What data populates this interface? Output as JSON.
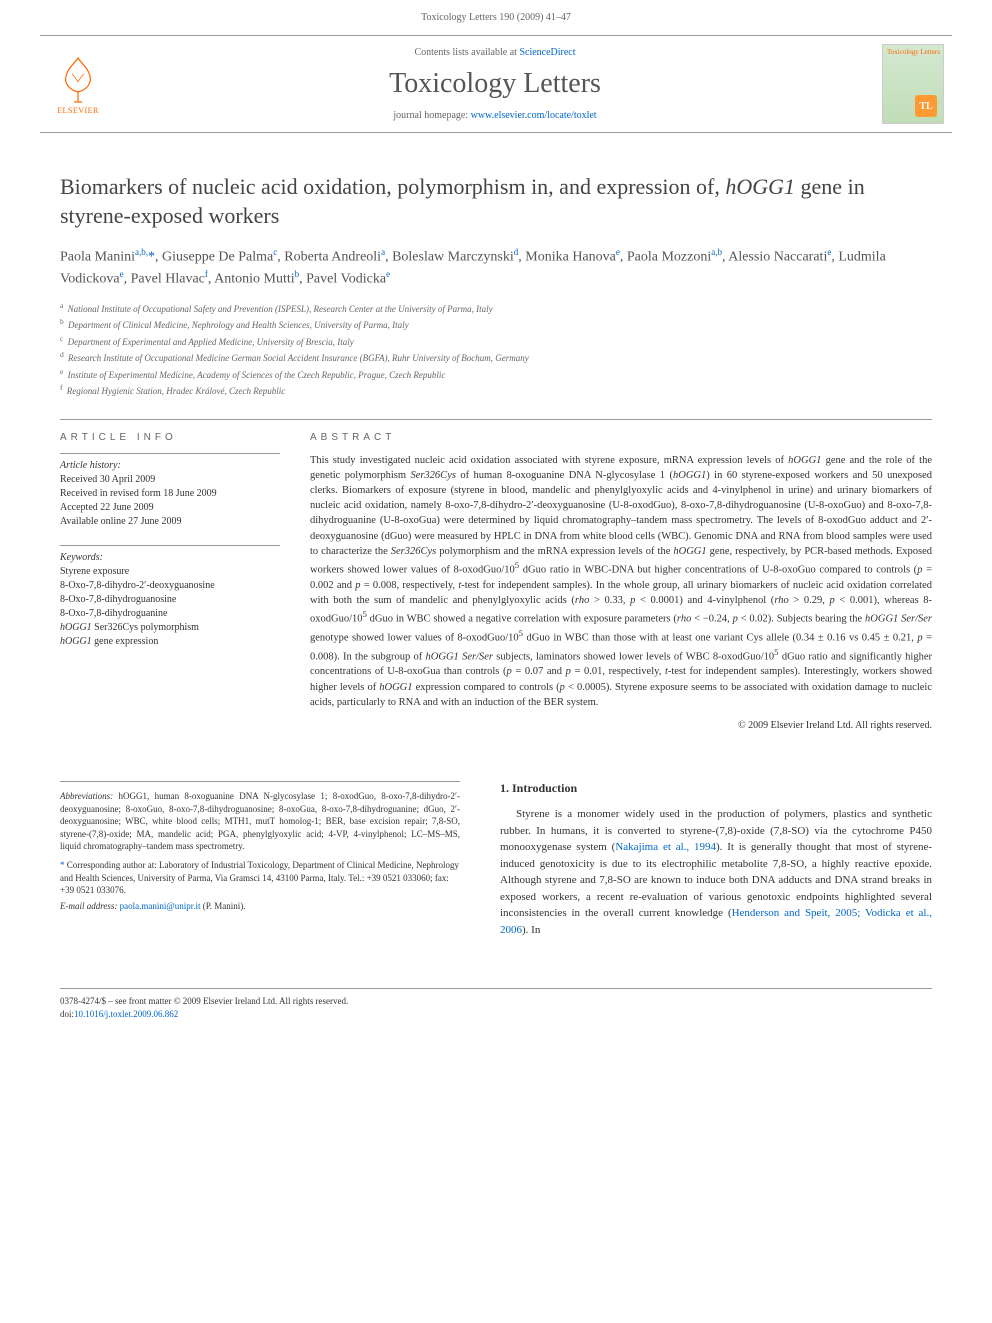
{
  "page_header": "Toxicology Letters 190 (2009) 41–47",
  "masthead": {
    "contents_prefix": "Contents lists available at ",
    "contents_link": "ScienceDirect",
    "journal_title": "Toxicology Letters",
    "homepage_prefix": "journal homepage: ",
    "homepage_url": "www.elsevier.com/locate/toxlet",
    "publisher_label": "ELSEVIER",
    "cover_label": "Toxicology\nLetters",
    "cover_badge": "TL"
  },
  "article": {
    "title_plain": "Biomarkers of nucleic acid oxidation, polymorphism in, and expression of, ",
    "title_em": "hOGG1",
    "title_tail": " gene in styrene-exposed workers",
    "authors_html": "Paola Manini<sup>a,b,</sup><span class='star'>*</span>, Giuseppe De Palma<sup>c</sup>, Roberta Andreoli<sup>a</sup>, Boleslaw Marczynski<sup>d</sup>, Monika Hanova<sup>e</sup>, Paola Mozzoni<sup>a,b</sup>, Alessio Naccarati<sup>e</sup>, Ludmila Vodickova<sup>e</sup>, Pavel Hlavac<sup>f</sup>, Antonio Mutti<sup>b</sup>, Pavel Vodicka<sup>e</sup>"
  },
  "affiliations": [
    "National Institute of Occupational Safety and Prevention (ISPESL), Research Center at the University of Parma, Italy",
    "Department of Clinical Medicine, Nephrology and Health Sciences, University of Parma, Italy",
    "Department of Experimental and Applied Medicine, University of Brescia, Italy",
    "Research Institute of Occupational Medicine German Social Accident Insurance (BGFA), Ruhr University of Bochum, Germany",
    "Institute of Experimental Medicine, Academy of Sciences of the Czech Republic, Prague, Czech Republic",
    "Regional Hygienic Station, Hradec Králové, Czech Republic"
  ],
  "aff_markers": [
    "a",
    "b",
    "c",
    "d",
    "e",
    "f"
  ],
  "info": {
    "heading": "ARTICLE INFO",
    "history_label": "Article history:",
    "history": [
      "Received 30 April 2009",
      "Received in revised form 18 June 2009",
      "Accepted 22 June 2009",
      "Available online 27 June 2009"
    ],
    "keywords_label": "Keywords:",
    "keywords": [
      "Styrene exposure",
      "8-Oxo-7,8-dihydro-2′-deoxyguanosine",
      "8-Oxo-7,8-dihydroguanosine",
      "8-Oxo-7,8-dihydroguanine",
      "hOGG1 Ser326Cys polymorphism",
      "hOGG1 gene expression"
    ]
  },
  "abstract": {
    "heading": "ABSTRACT",
    "text": "This study investigated nucleic acid oxidation associated with styrene exposure, mRNA expression levels of <em>hOGG1</em> gene and the role of the genetic polymorphism <em>Ser326Cys</em> of human 8-oxoguanine DNA N-glycosylase 1 (<em>hOGG1</em>) in 60 styrene-exposed workers and 50 unexposed clerks. Biomarkers of exposure (styrene in blood, mandelic and phenylglyoxylic acids and 4-vinylphenol in urine) and urinary biomarkers of nucleic acid oxidation, namely 8-oxo-7,8-dihydro-2′-deoxyguanosine (U-8-oxodGuo), 8-oxo-7,8-dihydroguanosine (U-8-oxoGuo) and 8-oxo-7,8-dihydroguanine (U-8-oxoGua) were determined by liquid chromatography–tandem mass spectrometry. The levels of 8-oxodGuo adduct and 2′-deoxyguanosine (dGuo) were measured by HPLC in DNA from white blood cells (WBC). Genomic DNA and RNA from blood samples were used to characterize the <em>Ser326Cys</em> polymorphism and the mRNA expression levels of the <em>hOGG1</em> gene, respectively, by PCR-based methods. Exposed workers showed lower values of 8-oxodGuo/10<sup>5</sup> dGuo ratio in WBC-DNA but higher concentrations of U-8-oxoGuo compared to controls (<em>p</em> = 0.002 and <em>p</em> = 0.008, respectively, <em>t</em>-test for independent samples). In the whole group, all urinary biomarkers of nucleic acid oxidation correlated with both the sum of mandelic and phenylglyoxylic acids (<em>rho</em> > 0.33, <em>p</em> < 0.0001) and 4-vinylphenol (<em>rho</em> > 0.29, <em>p</em> < 0.001), whereas 8-oxodGuo/10<sup>5</sup> dGuo in WBC showed a negative correlation with exposure parameters (<em>rho</em> < −0.24, <em>p</em> < 0.02). Subjects bearing the <em>hOGG1 Ser/Ser</em> genotype showed lower values of 8-oxodGuo/10<sup>5</sup> dGuo in WBC than those with at least one variant Cys allele (0.34 ± 0.16 vs 0.45 ± 0.21, <em>p</em> = 0.008). In the subgroup of <em>hOGG1 Ser/Ser</em> subjects, laminators showed lower levels of WBC 8-oxodGuo/10<sup>5</sup> dGuo ratio and significantly higher concentrations of U-8-oxoGua than controls (<em>p</em> = 0.07 and <em>p</em> = 0.01, respectively, <em>t</em>-test for independent samples). Interestingly, workers showed higher levels of <em>hOGG1</em> expression compared to controls (<em>p</em> < 0.0005). Styrene exposure seems to be associated with oxidation damage to nucleic acids, particularly to RNA and with an induction of the BER system.",
    "copyright": "© 2009 Elsevier Ireland Ltd. All rights reserved."
  },
  "abbreviations": {
    "label": "Abbreviations:",
    "text": " hOGG1, human 8-oxoguanine DNA N-glycosylase 1; 8-oxodGuo, 8-oxo-7,8-dihydro-2′-deoxyguanosine; 8-oxoGuo, 8-oxo-7,8-dihydroguanosine; 8-oxoGua, 8-oxo-7,8-dihydroguanine; dGuo, 2′-deoxyguanosine; WBC, white blood cells; MTH1, mutT homolog-1; BER, base excision repair; 7,8-SO, styrene-(7,8)-oxide; MA, mandelic acid; PGA, phenylglyoxylic acid; 4-VP, 4-vinylphenol; LC–MS–MS, liquid chromatography–tandem mass spectrometry."
  },
  "corresponding": {
    "text": "Corresponding author at: Laboratory of Industrial Toxicology, Department of Clinical Medicine, Nephrology and Health Sciences, University of Parma, Via Gramsci 14, 43100 Parma, Italy. Tel.: +39 0521 033060; fax: +39 0521 033076.",
    "email_label": "E-mail address:",
    "email": "paola.manini@unipr.it",
    "email_suffix": " (P. Manini)."
  },
  "introduction": {
    "heading": "1. Introduction",
    "text": "Styrene is a monomer widely used in the production of polymers, plastics and synthetic rubber. In humans, it is converted to styrene-(7,8)-oxide (7,8-SO) via the cytochrome P450 monooxygenase system (<a href='#'>Nakajima et al., 1994</a>). It is generally thought that most of styrene-induced genotoxicity is due to its electrophilic metabolite 7,8-SO, a highly reactive epoxide. Although styrene and 7,8-SO are known to induce both DNA adducts and DNA strand breaks in exposed workers, a recent re-evaluation of various genotoxic endpoints highlighted several inconsistencies in the overall current knowledge (<a href='#'>Henderson and Speit, 2005; Vodicka et al., 2006</a>). In"
  },
  "footer": {
    "line1": "0378-4274/$ – see front matter © 2009 Elsevier Ireland Ltd. All rights reserved.",
    "doi_label": "doi:",
    "doi": "10.1016/j.toxlet.2009.06.862"
  }
}
